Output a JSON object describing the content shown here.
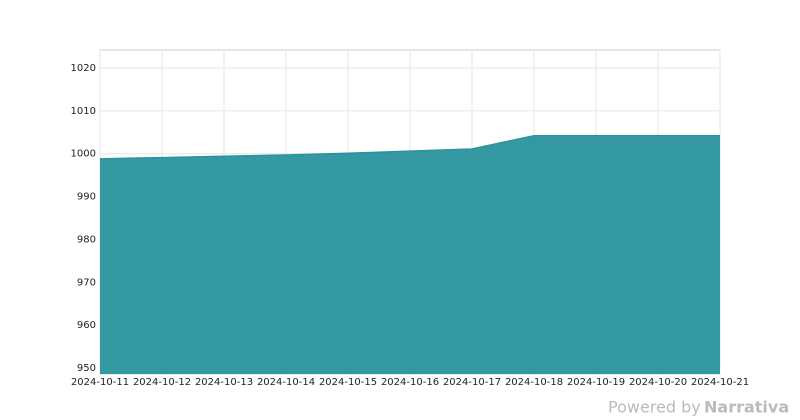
{
  "chart_data": {
    "type": "area",
    "x": [
      "2024-10-11",
      "2024-10-12",
      "2024-10-13",
      "2024-10-14",
      "2024-10-15",
      "2024-10-16",
      "2024-10-17",
      "2024-10-18",
      "2024-10-19",
      "2024-10-20",
      "2024-10-21"
    ],
    "series": [
      {
        "color": "#2a939e",
        "values": [
          998.8,
          999.1,
          999.4,
          999.7,
          1000.1,
          1000.6,
          1001.1,
          1004.2,
          1004.2,
          1004.2,
          1004.2
        ]
      }
    ],
    "ylim": [
      948.6,
      1024.2
    ],
    "yticks": [
      950,
      960,
      970,
      980,
      990,
      1000,
      1010,
      1020
    ],
    "grid": true,
    "credit": "Powered by",
    "credit_brand": "Narrativa"
  }
}
